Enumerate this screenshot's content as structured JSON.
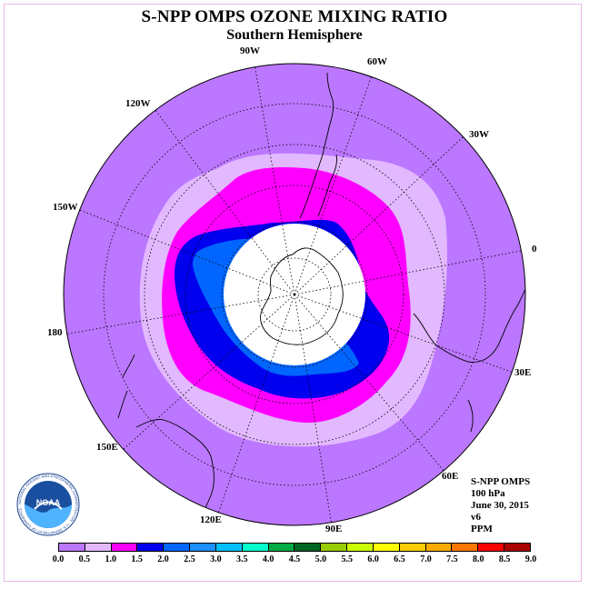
{
  "title": "S-NPP OMPS OZONE MIXING RATIO",
  "subtitle": "Southern Hemisphere",
  "longitude_labels": [
    "90W",
    "60W",
    "30W",
    "0",
    "30E",
    "60E",
    "90E",
    "120E",
    "150E",
    "180",
    "150W",
    "120W"
  ],
  "info": {
    "line1": "S-NPP OMPS",
    "line2": "100 hPa",
    "line3": "June 30, 2015",
    "line4": "v6",
    "line5": "PPM"
  },
  "colorbar": {
    "ticks": [
      "0.0",
      "0.5",
      "1.0",
      "1.5",
      "2.0",
      "2.5",
      "3.0",
      "3.5",
      "4.0",
      "4.5",
      "5.0",
      "5.5",
      "6.0",
      "6.5",
      "7.0",
      "7.5",
      "8.0",
      "8.5",
      "9.0"
    ],
    "colors": [
      "#bb77ff",
      "#e2b8ff",
      "#ff00ff",
      "#0000ee",
      "#0066ff",
      "#1e90ff",
      "#00c0ff",
      "#00ffcc",
      "#00aa44",
      "#006622",
      "#99cc00",
      "#ccff00",
      "#ffff00",
      "#ffcc00",
      "#ffaa00",
      "#ff7700",
      "#ff0000",
      "#aa0000"
    ]
  },
  "logo": {
    "text": "NOAA",
    "ring_text": "NATIONAL OCEANIC AND ATMOSPHERIC ADMINISTRATION · U.S. DEPARTMENT OF COMMERCE"
  },
  "colors": {
    "background_fill": "#bb77ff",
    "level_0_5": "#e2b8ff",
    "level_1_0": "#ff00ff",
    "level_1_5": "#0000ee",
    "level_2_0": "#0066ff",
    "level_2_5": "#1e90ff",
    "pole_mask": "#ffffff"
  }
}
